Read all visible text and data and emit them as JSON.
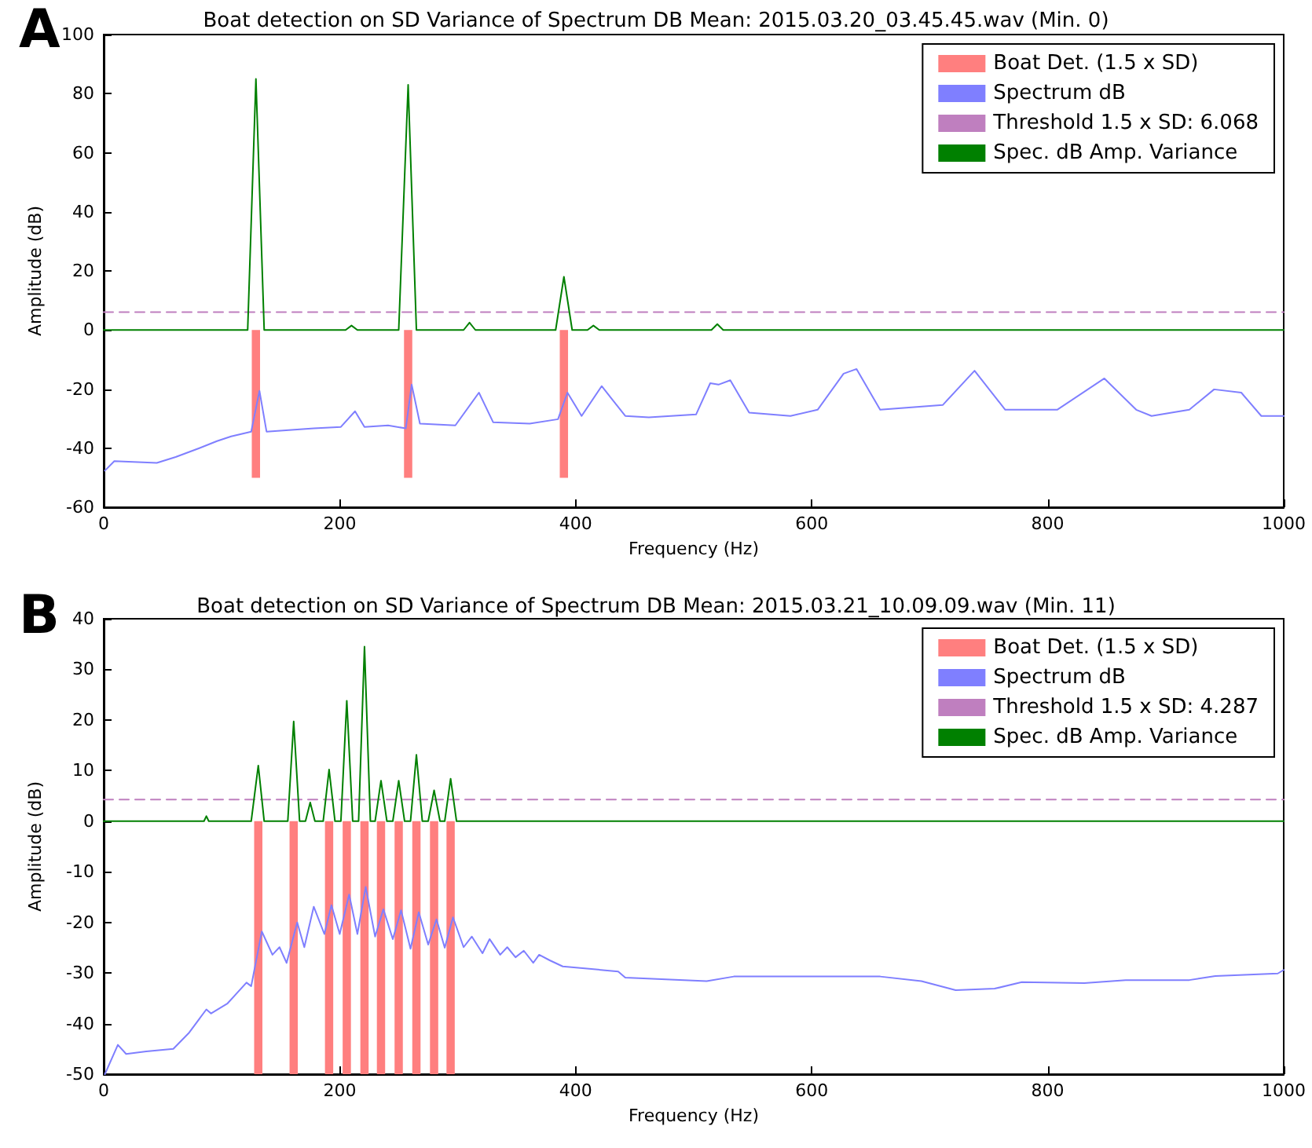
{
  "chart_data": [
    {
      "type": "line",
      "title": "Boat detection on SD Variance of Spectrum DB Mean: 2015.03.20_03.45.45.wav (Min. 0)",
      "xlabel": "Frequency (Hz)",
      "ylabel": "Amplitude (dB)",
      "annotations": [
        "A"
      ],
      "xlim": [
        0,
        1000
      ],
      "xticks": [
        0,
        200,
        400,
        600,
        800,
        1000
      ],
      "ylim": [
        -60,
        100
      ],
      "yticks": [
        -60,
        -40,
        -20,
        0,
        20,
        40,
        60,
        80,
        100
      ],
      "grid": false,
      "legend": "top right",
      "marker": "none",
      "line_style": "solid",
      "series": [
        {
          "name": "Boat Det. (1.5 x SD)",
          "type": "bar",
          "color": "#ff7f7f",
          "x": [
            129,
            258,
            390
          ],
          "values": [
            -50,
            -50,
            -50
          ]
        },
        {
          "name": "Spectrum dB",
          "color": "#7f7fff",
          "x": [
            1,
            9,
            45,
            61,
            81,
            96,
            108,
            125,
            132,
            138,
            178,
            201,
            213,
            221,
            241,
            256,
            261,
            268,
            298,
            318,
            330,
            361,
            385,
            393,
            405,
            422,
            442,
            462,
            502,
            514,
            521,
            531,
            547,
            582,
            605,
            627,
            638,
            658,
            711,
            738,
            764,
            808,
            848,
            875,
            888,
            920,
            941,
            964,
            981,
            1000
          ],
          "values": [
            -47.6,
            -44.4,
            -45,
            -43,
            -40,
            -37.6,
            -36,
            -34.4,
            -20.6,
            -34.4,
            -33.3,
            -32.8,
            -27.5,
            -32.8,
            -32.3,
            -33.3,
            -18.5,
            -31.7,
            -32.3,
            -21.2,
            -31.2,
            -31.7,
            -30.2,
            -21.2,
            -29.1,
            -19,
            -29.1,
            -29.6,
            -28.6,
            -18,
            -18.5,
            -17,
            -28,
            -29.1,
            -27,
            -14.8,
            -13.2,
            -27,
            -25.4,
            -13.8,
            -27,
            -27,
            -16.4,
            -27,
            -29.1,
            -27,
            -20.1,
            -21.2,
            -29.1,
            -29.1
          ]
        },
        {
          "name": "Threshold 1.5 x SD: 6.068",
          "color": "#bf7fbf",
          "line_style": "dashed",
          "x": [
            0,
            1000
          ],
          "values": [
            6.068,
            6.068
          ]
        },
        {
          "name": "Spec. dB Amp. Variance",
          "color": "#008000",
          "x": [
            0,
            122,
            129,
            136,
            205,
            210,
            215,
            250,
            258,
            265,
            305,
            310,
            315,
            383,
            390,
            397,
            410,
            415,
            420,
            515,
            520,
            525,
            1000
          ],
          "values": [
            0,
            0,
            85,
            0,
            0,
            1.5,
            0,
            0,
            83,
            0,
            0,
            2.5,
            0,
            0,
            18,
            0,
            0,
            1.5,
            0,
            0,
            2,
            0,
            0
          ]
        }
      ]
    },
    {
      "type": "line",
      "title": "Boat detection on SD Variance of Spectrum DB Mean: 2015.03.21_10.09.09.wav (Min. 11)",
      "xlabel": "Frequency (Hz)",
      "ylabel": "Amplitude (dB)",
      "annotations": [
        "B"
      ],
      "xlim": [
        0,
        1000
      ],
      "xticks": [
        0,
        200,
        400,
        600,
        800,
        1000
      ],
      "ylim": [
        -50,
        40
      ],
      "yticks": [
        -50,
        -40,
        -30,
        -20,
        -10,
        0,
        10,
        20,
        30,
        40
      ],
      "grid": false,
      "legend": "top right",
      "marker": "none",
      "line_style": "solid",
      "series": [
        {
          "name": "Boat Det. (1.5 x SD)",
          "type": "bar",
          "color": "#ff7f7f",
          "x": [
            131,
            161,
            191,
            206,
            221,
            235,
            250,
            265,
            280,
            294
          ],
          "values": [
            -50,
            -50,
            -50,
            -50,
            -50,
            -50,
            -50,
            -50,
            -50,
            -50
          ]
        },
        {
          "name": "Spectrum dB",
          "color": "#7f7fff",
          "x": [
            1,
            12,
            19,
            36,
            59,
            72,
            87,
            91,
            105,
            121,
            125,
            134,
            143,
            149,
            155,
            164,
            170,
            178,
            187,
            193,
            200,
            208,
            215,
            222,
            230,
            237,
            245,
            252,
            260,
            267,
            275,
            282,
            289,
            296,
            305,
            312,
            321,
            327,
            336,
            342,
            349,
            356,
            364,
            369,
            378,
            389,
            436,
            442,
            511,
            534,
            596,
            658,
            693,
            722,
            755,
            778,
            831,
            866,
            920,
            942,
            995,
            1000
          ],
          "values": [
            -50,
            -44.2,
            -46,
            -45.5,
            -45,
            -41.9,
            -37.2,
            -38,
            -36,
            -31.9,
            -32.6,
            -21.8,
            -26.4,
            -24.9,
            -28,
            -20,
            -24.9,
            -16.9,
            -22.3,
            -16.6,
            -22.3,
            -14.5,
            -22.3,
            -13,
            -22.8,
            -17.4,
            -23.3,
            -17.6,
            -25.2,
            -18,
            -24.4,
            -19.4,
            -25,
            -19,
            -24.9,
            -22.8,
            -26.1,
            -23.3,
            -26.4,
            -24.9,
            -26.9,
            -25.6,
            -28,
            -26.4,
            -27.5,
            -28.7,
            -29.7,
            -30.9,
            -31.6,
            -30.7,
            -30.7,
            -30.7,
            -31.6,
            -33.4,
            -33.1,
            -31.8,
            -32,
            -31.4,
            -31.4,
            -30.6,
            -30.1,
            -29.4
          ]
        },
        {
          "name": "Threshold 1.5 x SD: 4.287",
          "color": "#bf7fbf",
          "line_style": "dashed",
          "x": [
            0,
            1000
          ],
          "values": [
            4.287,
            4.287
          ]
        },
        {
          "name": "Spec. dB Amp. Variance",
          "color": "#008000",
          "x": [
            0,
            85,
            87,
            89,
            125,
            131,
            136,
            156,
            161,
            166,
            171,
            175,
            179,
            186,
            191,
            196,
            201,
            206,
            211,
            216,
            221,
            226,
            230,
            235,
            240,
            245,
            250,
            255,
            260,
            265,
            270,
            275,
            280,
            285,
            289,
            294,
            299,
            1000
          ],
          "values": [
            0,
            0,
            1,
            0,
            0,
            11,
            0,
            0,
            19.7,
            0,
            0,
            3.7,
            0,
            0,
            10.2,
            0,
            0,
            23.8,
            0,
            0,
            34.5,
            0,
            0,
            8,
            0,
            0,
            8,
            0,
            0,
            13.1,
            0,
            0,
            6.1,
            0,
            0,
            8.4,
            0,
            0
          ]
        }
      ]
    }
  ]
}
